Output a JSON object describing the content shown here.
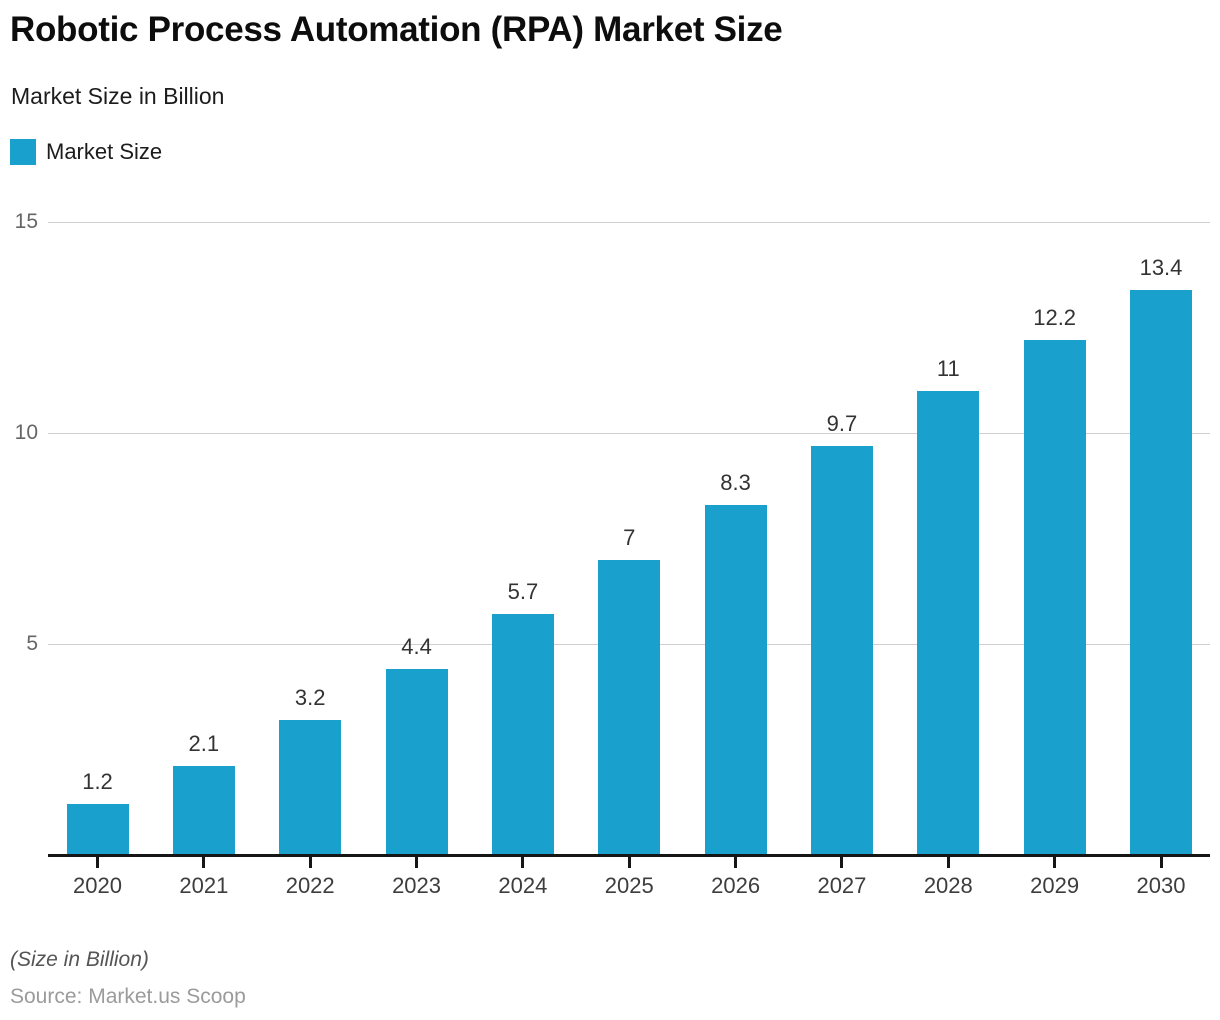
{
  "header": {
    "title": "Robotic Process Automation (RPA) Market Size",
    "subtitle": "Market Size in Billion"
  },
  "legend": {
    "label": "Market Size",
    "swatch_color": "#1AA0CC"
  },
  "chart_data": {
    "type": "bar",
    "title": "Robotic Process Automation (RPA) Market Size",
    "subtitle": "Market Size in Billion",
    "series_name": "Market Size",
    "categories": [
      "2020",
      "2021",
      "2022",
      "2023",
      "2024",
      "2025",
      "2026",
      "2027",
      "2028",
      "2029",
      "2030"
    ],
    "values": [
      1.2,
      2.1,
      3.2,
      4.4,
      5.7,
      7,
      8.3,
      9.7,
      11,
      12.2,
      13.4
    ],
    "xlabel": "",
    "ylabel": "",
    "ylim": [
      0,
      15
    ],
    "yticks": [
      5,
      10,
      15
    ],
    "grid": true,
    "legend_position": "top-left",
    "bar_color": "#1AA0CC",
    "gridline_color": "#cfcfcf",
    "axis_color": "#161616"
  },
  "footer": {
    "note": "(Size in Billion)",
    "source": "Source: Market.us Scoop"
  }
}
